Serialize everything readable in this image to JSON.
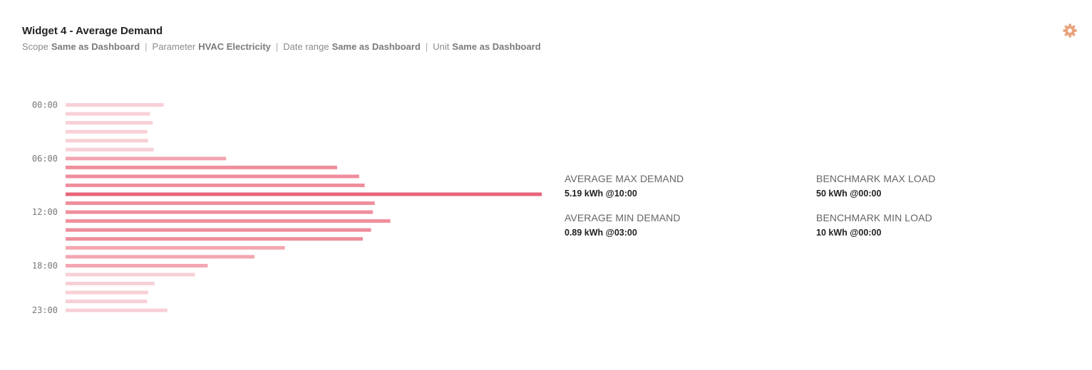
{
  "widget": {
    "title": "Widget 4 - Average Demand",
    "meta": [
      {
        "label": "Scope",
        "value": "Same as Dashboard"
      },
      {
        "label": "Parameter",
        "value": "HVAC Electricity"
      },
      {
        "label": "Date range",
        "value": "Same as Dashboard"
      },
      {
        "label": "Unit",
        "value": "Same as Dashboard"
      }
    ],
    "separator": "|",
    "settings_icon": "gear-icon",
    "accent_color": "#e8a47d"
  },
  "chart_data": {
    "type": "bar",
    "orientation": "horizontal",
    "unit": "kWh",
    "categories": [
      "00:00",
      "01:00",
      "02:00",
      "03:00",
      "04:00",
      "05:00",
      "06:00",
      "07:00",
      "08:00",
      "09:00",
      "10:00",
      "11:00",
      "12:00",
      "13:00",
      "14:00",
      "15:00",
      "16:00",
      "17:00",
      "18:00",
      "19:00",
      "20:00",
      "21:00",
      "22:00",
      "23:00"
    ],
    "values": [
      1.07,
      0.92,
      0.95,
      0.89,
      0.9,
      0.96,
      1.75,
      2.96,
      3.2,
      3.26,
      5.19,
      3.37,
      3.35,
      3.54,
      3.33,
      3.24,
      2.39,
      2.06,
      1.55,
      1.41,
      0.97,
      0.9,
      0.89,
      1.11
    ],
    "tick_labels": [
      "00:00",
      "06:00",
      "12:00",
      "18:00",
      "23:00"
    ],
    "xlim": [
      0,
      5.19
    ],
    "colors": {
      "low": "#f7d0d6",
      "mid": "#f2a6b1",
      "high": "#ef8e9c",
      "peak": "#e8657a"
    }
  },
  "stats": {
    "avg_max": {
      "label": "AVERAGE MAX DEMAND",
      "value": "5.19 kWh @10:00"
    },
    "avg_min": {
      "label": "AVERAGE MIN DEMAND",
      "value": "0.89 kWh @03:00"
    },
    "bench_max": {
      "label": "BENCHMARK MAX LOAD",
      "value": "50 kWh @00:00"
    },
    "bench_min": {
      "label": "BENCHMARK MIN LOAD",
      "value": "10 kWh @00:00"
    }
  }
}
